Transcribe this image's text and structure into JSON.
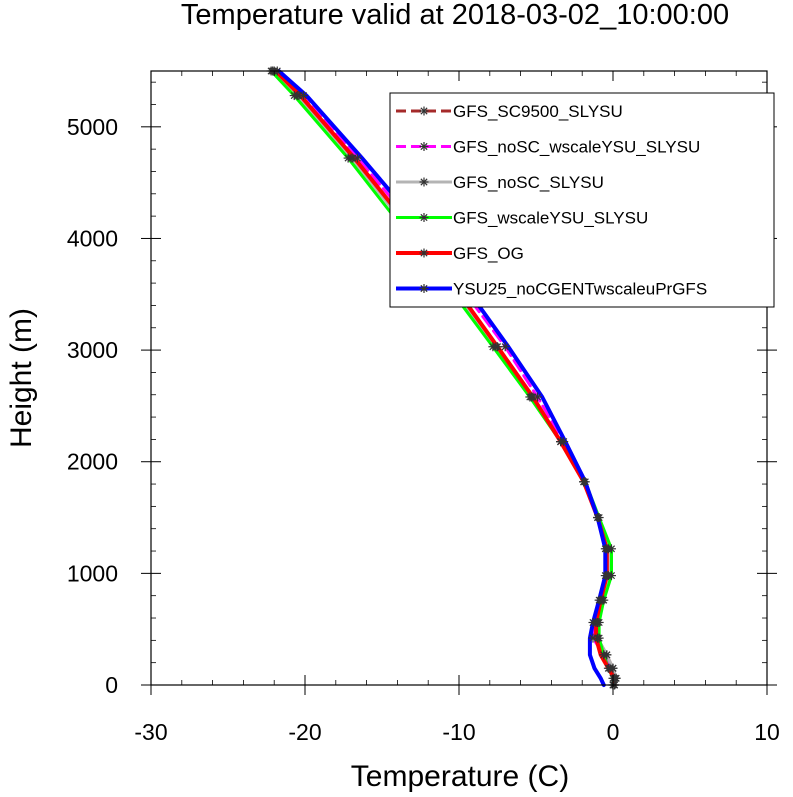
{
  "chart_data": {
    "type": "line",
    "title": "Temperature valid at 2018-03-02_10:00:00",
    "xlabel": "Temperature (C)",
    "ylabel": "Height (m)",
    "xlim": [
      -30,
      10
    ],
    "ylim": [
      0,
      5500
    ],
    "xticks": [
      -30,
      -20,
      -10,
      0,
      10
    ],
    "yticks": [
      0,
      1000,
      2000,
      3000,
      4000,
      5000
    ],
    "legend_position": "top-right",
    "grid": false,
    "series": [
      {
        "name": "GFS_SC9500_SLYSU",
        "color": "#a52a2a",
        "dash": "dashed",
        "markers": true,
        "width": 3,
        "points": [
          [
            0.1,
            0
          ],
          [
            0.2,
            60
          ],
          [
            0,
            150
          ],
          [
            -0.4,
            270
          ],
          [
            -1.0,
            420
          ],
          [
            -1.1,
            560
          ],
          [
            -0.8,
            760
          ],
          [
            -0.4,
            980
          ],
          [
            -0.4,
            1220
          ],
          [
            -1.0,
            1500
          ],
          [
            -1.9,
            1820
          ],
          [
            -3.4,
            2180
          ],
          [
            -5.2,
            2580
          ],
          [
            -7.5,
            3030
          ],
          [
            -10.3,
            3550
          ],
          [
            -13.4,
            4120
          ],
          [
            -16.9,
            4720
          ],
          [
            -20.4,
            5280
          ],
          [
            -22.0,
            5500
          ]
        ]
      },
      {
        "name": "GFS_noSC_wscaleYSU_SLYSU",
        "color": "#ff00ff",
        "dash": "dashed",
        "markers": true,
        "width": 3,
        "points": [
          [
            0,
            0
          ],
          [
            0.1,
            60
          ],
          [
            -0.2,
            150
          ],
          [
            -0.6,
            270
          ],
          [
            -1.3,
            420
          ],
          [
            -1.3,
            560
          ],
          [
            -0.9,
            760
          ],
          [
            -0.5,
            980
          ],
          [
            -0.5,
            1220
          ],
          [
            -1.0,
            1500
          ],
          [
            -1.9,
            1820
          ],
          [
            -3.2,
            2180
          ],
          [
            -4.9,
            2580
          ],
          [
            -7.0,
            3030
          ],
          [
            -9.8,
            3550
          ],
          [
            -12.9,
            4120
          ],
          [
            -16.6,
            4720
          ],
          [
            -20.1,
            5280
          ],
          [
            -21.8,
            5500
          ]
        ]
      },
      {
        "name": "GFS_noSC_SLYSU",
        "color": "#b4b4b4",
        "dash": "solid",
        "markers": true,
        "width": 3,
        "points": [
          [
            0.1,
            0
          ],
          [
            0.2,
            60
          ],
          [
            0,
            150
          ],
          [
            -0.4,
            270
          ],
          [
            -1.0,
            420
          ],
          [
            -1.0,
            560
          ],
          [
            -0.7,
            760
          ],
          [
            -0.3,
            980
          ],
          [
            -0.3,
            1220
          ],
          [
            -1.0,
            1500
          ],
          [
            -1.9,
            1820
          ],
          [
            -3.4,
            2180
          ],
          [
            -5.3,
            2580
          ],
          [
            -7.6,
            3030
          ],
          [
            -10.4,
            3550
          ],
          [
            -13.5,
            4120
          ],
          [
            -17.0,
            4720
          ],
          [
            -20.5,
            5280
          ],
          [
            -22.1,
            5500
          ]
        ]
      },
      {
        "name": "GFS_wscaleYSU_SLYSU",
        "color": "#00ff00",
        "dash": "solid",
        "markers": true,
        "width": 3,
        "points": [
          [
            0,
            0
          ],
          [
            0,
            60
          ],
          [
            -0.3,
            150
          ],
          [
            -0.6,
            270
          ],
          [
            -0.9,
            420
          ],
          [
            -0.9,
            560
          ],
          [
            -0.6,
            760
          ],
          [
            -0.1,
            980
          ],
          [
            -0.1,
            1220
          ],
          [
            -0.9,
            1500
          ],
          [
            -1.8,
            1820
          ],
          [
            -3.4,
            2180
          ],
          [
            -5.4,
            2580
          ],
          [
            -7.8,
            3030
          ],
          [
            -10.6,
            3550
          ],
          [
            -13.8,
            4120
          ],
          [
            -17.2,
            4720
          ],
          [
            -20.7,
            5280
          ],
          [
            -22.2,
            5500
          ]
        ]
      },
      {
        "name": "GFS_OG",
        "color": "#ff0000",
        "dash": "solid",
        "markers": false,
        "width": 4,
        "points": [
          [
            0.1,
            0
          ],
          [
            0.1,
            60
          ],
          [
            -0.3,
            150
          ],
          [
            -0.8,
            270
          ],
          [
            -1.1,
            420
          ],
          [
            -1.1,
            560
          ],
          [
            -0.8,
            760
          ],
          [
            -0.4,
            980
          ],
          [
            -0.4,
            1220
          ],
          [
            -1.0,
            1500
          ],
          [
            -1.9,
            1820
          ],
          [
            -3.4,
            2180
          ],
          [
            -5.2,
            2580
          ],
          [
            -7.5,
            3030
          ],
          [
            -10.2,
            3550
          ],
          [
            -13.3,
            4120
          ],
          [
            -16.8,
            4720
          ],
          [
            -20.3,
            5280
          ],
          [
            -21.9,
            5500
          ]
        ]
      },
      {
        "name": "YSU25_noCGENTwscaleuPrGFS",
        "color": "#0000ff",
        "dash": "solid",
        "markers": false,
        "width": 4,
        "points": [
          [
            -0.6,
            0
          ],
          [
            -0.8,
            60
          ],
          [
            -1.2,
            150
          ],
          [
            -1.5,
            270
          ],
          [
            -1.5,
            420
          ],
          [
            -1.3,
            560
          ],
          [
            -0.9,
            760
          ],
          [
            -0.5,
            980
          ],
          [
            -0.5,
            1220
          ],
          [
            -1.0,
            1500
          ],
          [
            -1.8,
            1820
          ],
          [
            -3.1,
            2180
          ],
          [
            -4.6,
            2580
          ],
          [
            -6.8,
            3030
          ],
          [
            -9.5,
            3550
          ],
          [
            -12.6,
            4120
          ],
          [
            -16.3,
            4720
          ],
          [
            -19.9,
            5280
          ],
          [
            -21.7,
            5500
          ]
        ]
      }
    ]
  }
}
